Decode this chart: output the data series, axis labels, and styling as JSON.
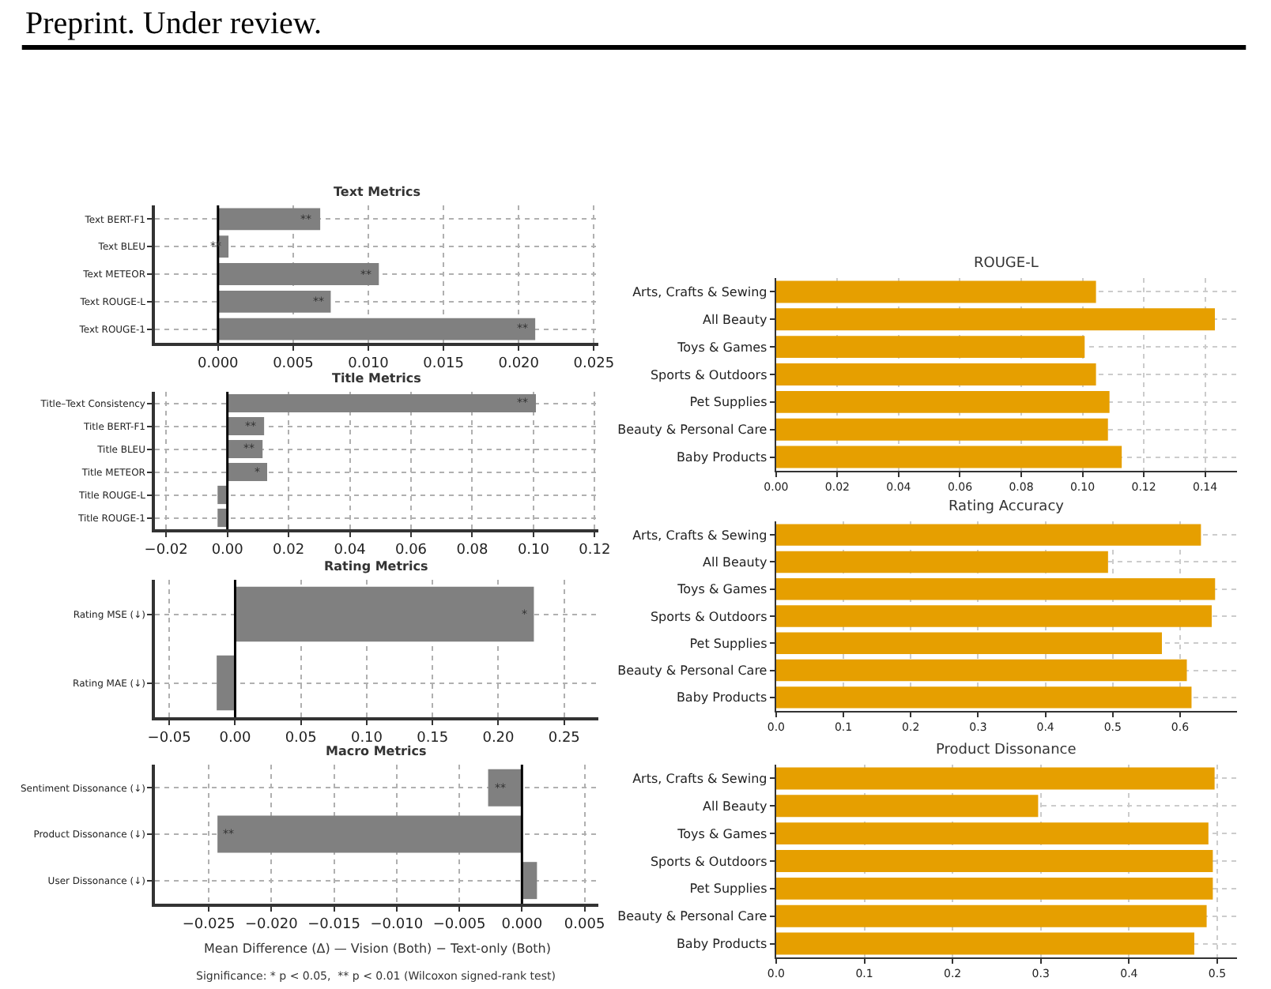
{
  "chart_data": [
    {
      "type": "bar",
      "orientation": "horizontal",
      "title": "Text Metrics",
      "categories": [
        "Text BERT-F1",
        "Text BLEU",
        "Text METEOR",
        "Text ROUGE-L",
        "Text ROUGE-1"
      ],
      "values": [
        0.0068,
        0.0007,
        0.0107,
        0.0075,
        0.0211
      ],
      "color": "#808080",
      "xlim": [
        -0.0042,
        0.0253
      ],
      "xticks": [
        {
          "value": 0,
          "label": "0.000"
        },
        0.005,
        {
          "value": 0.01,
          "label": "0.010"
        },
        0.015,
        {
          "value": 0.02,
          "label": "0.020"
        },
        0.025
      ],
      "grid": true,
      "ref_lines": [
        {
          "axis": "x",
          "value": 0,
          "color": "#000000"
        }
      ],
      "annotations": [
        "Preprint. Under review.",
        {
          "text": "**",
          "x": 0.0059,
          "y": "Text BERT-F1"
        },
        {
          "text": "**",
          "x": -0.0001,
          "y": "Text BLEU"
        },
        {
          "text": "**",
          "x": 0.0099,
          "y": "Text METEOR"
        },
        {
          "text": "**",
          "x": 0.0067,
          "y": "Text ROUGE-L"
        },
        {
          "text": "**",
          "x": 0.0203,
          "y": "Text ROUGE-1"
        }
      ]
    },
    {
      "type": "bar",
      "orientation": "horizontal",
      "title": "Title Metrics",
      "categories": [
        "Title–Text Consistency",
        "Title BERT-F1",
        "Title BLEU",
        "Title METEOR",
        "Title ROUGE-L",
        "Title ROUGE-1"
      ],
      "values": [
        0.1008,
        0.012,
        0.0115,
        0.013,
        -0.0032,
        -0.0032
      ],
      "color": "#808080",
      "xlim": [
        -0.0237,
        0.1212
      ],
      "xticks": [
        {
          "value": -0.02,
          "label": "−0.02"
        },
        {
          "value": 0,
          "label": "0.00"
        },
        0.02,
        0.04,
        0.06,
        0.08,
        {
          "value": 0.1,
          "label": "0.10"
        },
        0.12
      ],
      "grid": true,
      "ref_lines": [
        {
          "axis": "x",
          "value": 0,
          "color": "#000000"
        }
      ],
      "annotations": [
        {
          "text": "**",
          "x": 0.0969,
          "y": "Title–Text Consistency"
        },
        {
          "text": "**",
          "x": 0.008,
          "y": "Title BERT-F1"
        },
        {
          "text": "**",
          "x": 0.0071,
          "y": "Title BLEU"
        },
        {
          "text": "*",
          "x": 0.0098,
          "y": "Title METEOR"
        }
      ]
    },
    {
      "type": "bar",
      "orientation": "horizontal",
      "title": "Rating Metrics",
      "categories": [
        "Rating MSE (↓)",
        "Rating MAE (↓)"
      ],
      "values": [
        0.227,
        -0.014
      ],
      "color": "#808080",
      "xlim": [
        -0.061,
        0.276
      ],
      "xticks": [
        {
          "value": -0.05,
          "label": "−0.05"
        },
        {
          "value": 0,
          "label": "0.00"
        },
        0.05,
        {
          "value": 0.1,
          "label": "0.10"
        },
        0.15,
        {
          "value": 0.2,
          "label": "0.20"
        },
        0.25
      ],
      "grid": true,
      "ref_lines": [
        {
          "axis": "x",
          "value": 0,
          "color": "#000000"
        }
      ],
      "annotations": [
        {
          "text": "*",
          "x": 0.22,
          "y": "Rating MSE (↓)"
        }
      ]
    },
    {
      "type": "bar",
      "orientation": "horizontal",
      "title": "Macro Metrics",
      "xlabel": "Mean Difference (Δ) — Vision (Both) − Text-only (Both)",
      "categories": [
        "Sentiment Dissonance (↓)",
        "Product Dissonance (↓)",
        "User Dissonance (↓)"
      ],
      "values": [
        -0.0027,
        -0.0243,
        0.0012
      ],
      "color": "#808080",
      "xlim": [
        -0.0293,
        0.0061
      ],
      "xticks": [
        {
          "value": -0.025,
          "label": "−0.025"
        },
        {
          "value": -0.02,
          "label": "−0.020"
        },
        {
          "value": -0.015,
          "label": "−0.015"
        },
        {
          "value": -0.01,
          "label": "−0.010"
        },
        {
          "value": -0.005,
          "label": "−0.005"
        },
        {
          "value": 0,
          "label": "0.000"
        },
        0.005
      ],
      "grid": true,
      "ref_lines": [
        {
          "axis": "x",
          "value": 0,
          "color": "#000000"
        }
      ],
      "annotations": [
        "Significance: * p < 0.05,  ** p < 0.01 (Wilcoxon signed-rank test)",
        {
          "text": "**",
          "x": -0.0017,
          "y": "Sentiment Dissonance (↓)"
        },
        {
          "text": "**",
          "x": -0.0234,
          "y": "Product Dissonance (↓)"
        }
      ]
    },
    {
      "type": "bar",
      "orientation": "horizontal",
      "title": "ROUGE-L",
      "categories": [
        "Arts, Crafts & Sewing",
        "All Beauty",
        "Toys & Games",
        "Sports & Outdoors",
        "Pet Supplies",
        "Beauty & Personal Care",
        "Baby Products"
      ],
      "values": [
        0.1044,
        0.1432,
        0.1007,
        0.1044,
        0.1088,
        0.1083,
        0.1128
      ],
      "color": "#e69f00",
      "xlim": [
        0,
        0.1503
      ],
      "xticks": [
        {
          "value": 0,
          "label": "0.00"
        },
        0.02,
        0.04,
        0.06,
        0.08,
        {
          "value": 0.1,
          "label": "0.10"
        },
        0.12,
        0.14
      ],
      "grid": true
    },
    {
      "type": "bar",
      "orientation": "horizontal",
      "title": "Rating Accuracy",
      "categories": [
        "Arts, Crafts & Sewing",
        "All Beauty",
        "Toys & Games",
        "Sports & Outdoors",
        "Pet Supplies",
        "Beauty & Personal Care",
        "Baby Products"
      ],
      "values": [
        0.631,
        0.493,
        0.652,
        0.647,
        0.573,
        0.61,
        0.617
      ],
      "color": "#e69f00",
      "xlim": [
        0,
        0.684
      ],
      "xticks": [
        {
          "value": 0,
          "label": "0.0"
        },
        0.1,
        0.2,
        0.3,
        0.4,
        0.5,
        0.6
      ],
      "grid": true
    },
    {
      "type": "bar",
      "orientation": "horizontal",
      "title": "Product Dissonance",
      "categories": [
        "Arts, Crafts & Sewing",
        "All Beauty",
        "Toys & Games",
        "Sports & Outdoors",
        "Pet Supplies",
        "Beauty & Personal Care",
        "Baby Products"
      ],
      "values": [
        0.497,
        0.297,
        0.49,
        0.495,
        0.495,
        0.488,
        0.474
      ],
      "color": "#e69f00",
      "xlim": [
        0,
        0.522
      ],
      "xticks": [
        {
          "value": 0,
          "label": "0.0"
        },
        0.1,
        0.2,
        0.3,
        0.4,
        0.5
      ],
      "grid": true
    }
  ]
}
